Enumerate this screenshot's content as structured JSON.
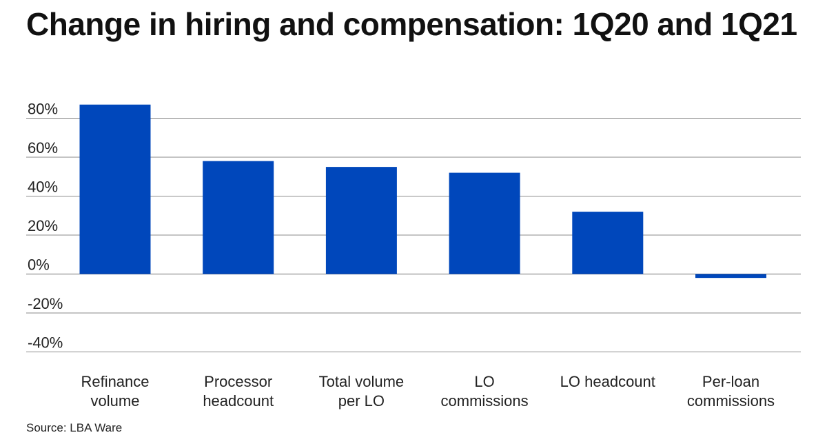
{
  "chart_data": {
    "type": "bar",
    "title": "Change in hiring and compensation: 1Q20 and 1Q21",
    "categories": [
      [
        "Refinance",
        "volume"
      ],
      [
        "Processor",
        "headcount"
      ],
      [
        "Total volume",
        "per LO"
      ],
      [
        "LO",
        "commissions"
      ],
      [
        "LO headcount"
      ],
      [
        "Per-loan",
        "commissions"
      ]
    ],
    "values": [
      87,
      58,
      55,
      52,
      32,
      -2
    ],
    "y_ticks": [
      "80%",
      "60%",
      "40%",
      "20%",
      "0%",
      "-20%",
      "-40%"
    ],
    "y_tick_values": [
      80,
      60,
      40,
      20,
      0,
      -20,
      -40
    ],
    "ylim": [
      -40,
      80
    ],
    "grid": true,
    "bar_color": "#0047BB",
    "source": "Source: LBA Ware"
  }
}
